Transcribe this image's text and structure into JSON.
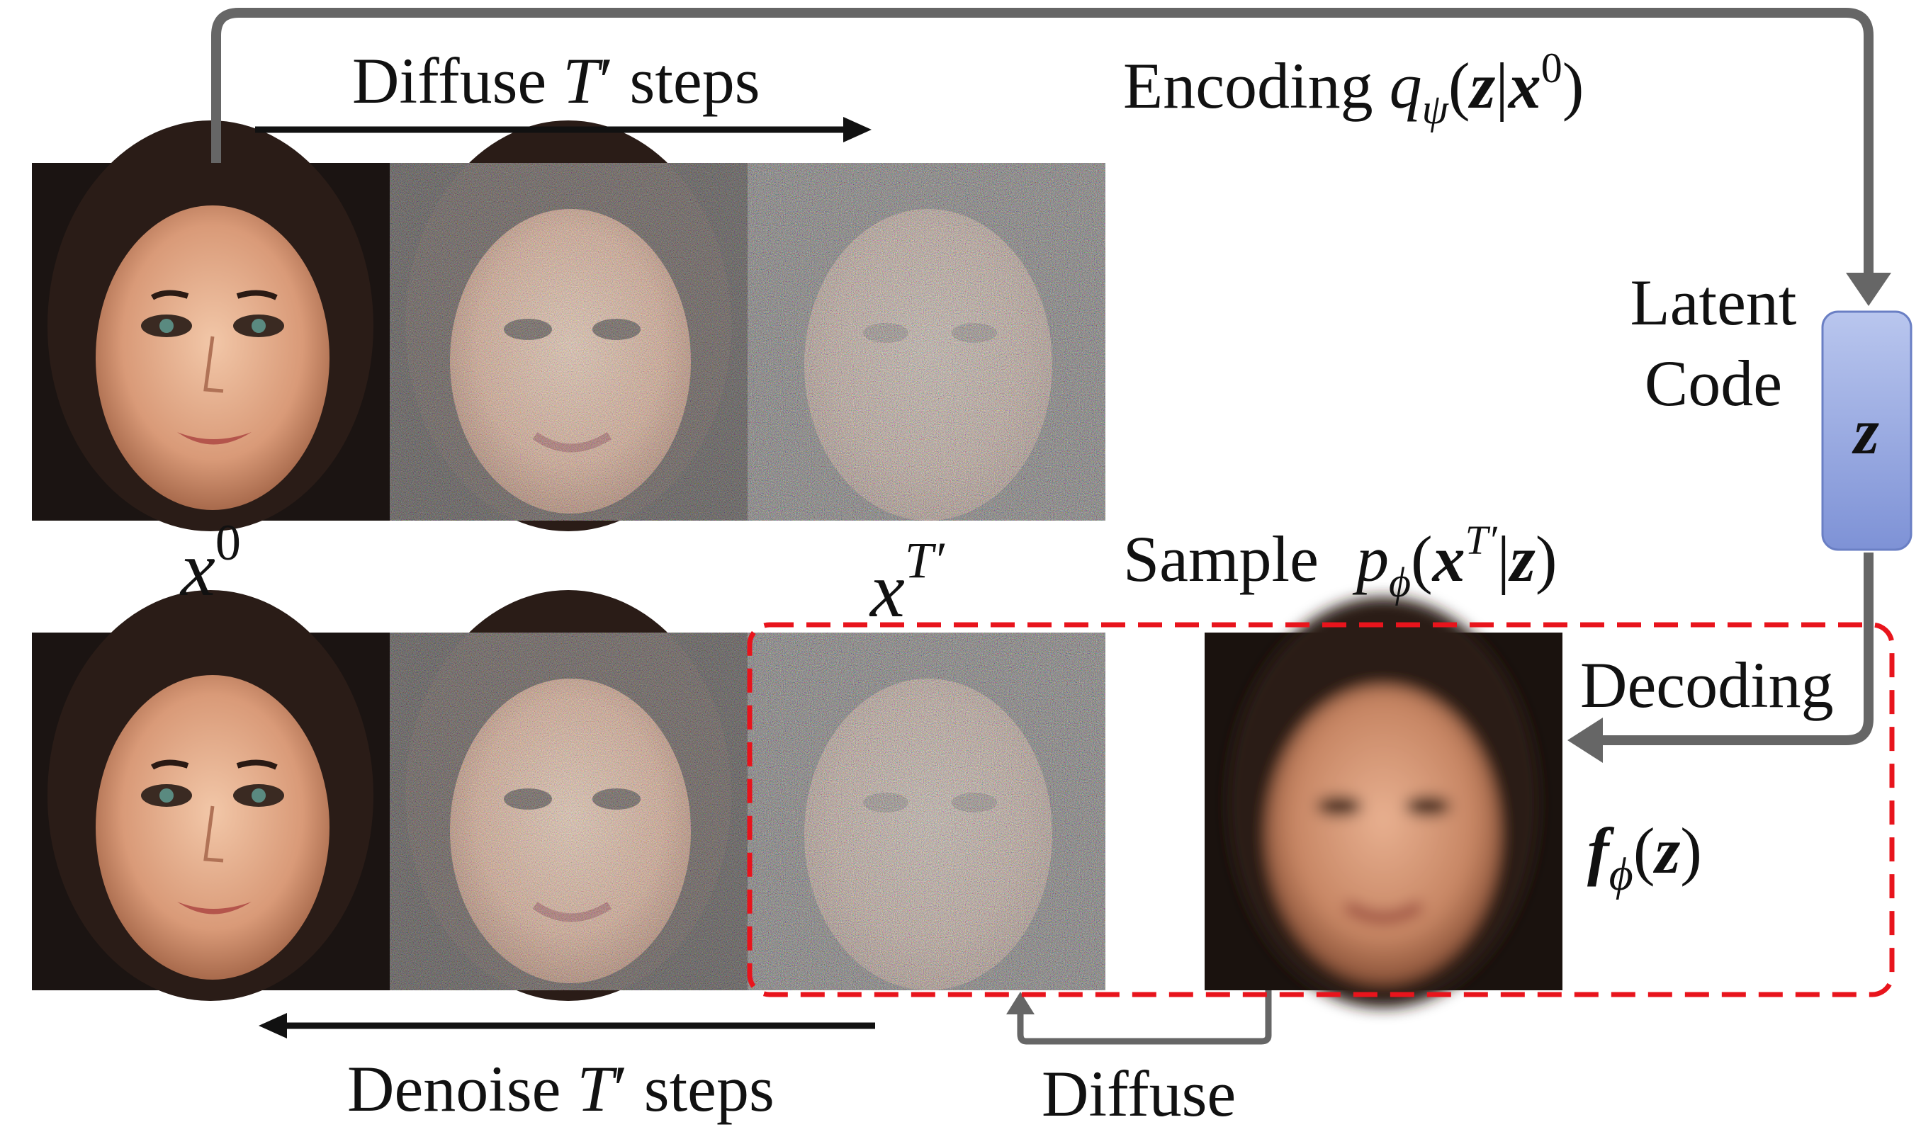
{
  "labels": {
    "diffuse_top": {
      "pre": "Diffuse ",
      "var": "T",
      "prime": "′",
      "post": " steps"
    },
    "encoding": {
      "word": "Encoding ",
      "q": "q",
      "q_sub": "ψ",
      "open": "(",
      "z": "z",
      "bar": "|",
      "x": "x",
      "x_sup": "0",
      "close": ")"
    },
    "latent_line1": "Latent",
    "latent_line2": "Code",
    "z_box": "z",
    "sample": {
      "word": "Sample ",
      "p": "p",
      "p_sub": "ϕ",
      "open": "(",
      "x": "x",
      "x_sup": "T′",
      "bar": "|",
      "z": "z",
      "close": ")"
    },
    "x0": {
      "base": "x",
      "sup": "0"
    },
    "xT": {
      "base": "x",
      "sup": "T′"
    },
    "decoding": "Decoding",
    "f": {
      "f": "f",
      "sub": "ϕ",
      "open": "(",
      "z": "z",
      "close": ")"
    },
    "denoise_bottom": {
      "pre": "Denoise ",
      "var": "T",
      "prime": "′",
      "post": " steps"
    },
    "diffuse_bottom": "Diffuse"
  },
  "images": {
    "top_row": [
      "clean-face",
      "noisy-face",
      "noisier-face"
    ],
    "bottom_row": [
      "reconstructed-face",
      "noisy-face",
      "noisier-face"
    ],
    "decoded": "decoded-blurry-face"
  },
  "colors": {
    "flow_arrow": "#666666",
    "latent_box_top": "#b9c6ee",
    "latent_box_bottom": "#7e92d6",
    "dashed_box": "#e8141c",
    "text": "#111111"
  }
}
